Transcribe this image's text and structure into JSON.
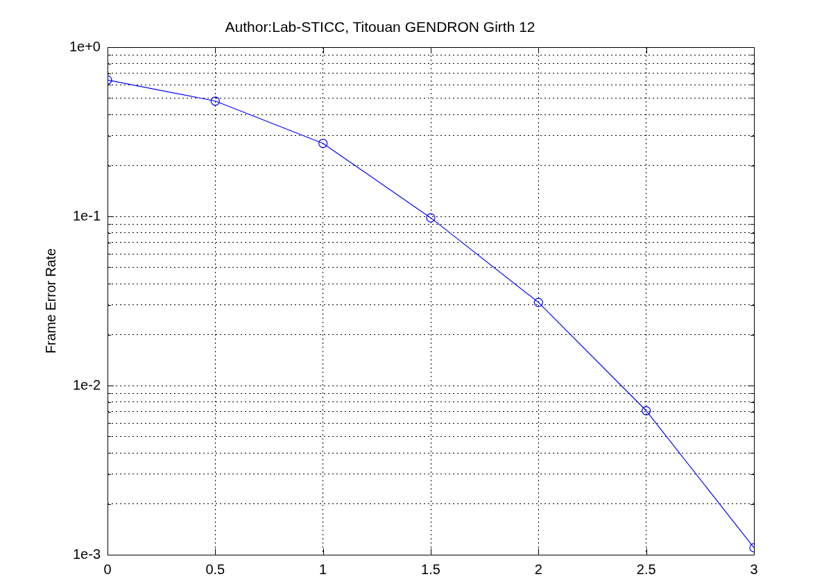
{
  "chart_data": {
    "type": "line",
    "title": "Author:Lab-STICC, Titouan GENDRON Girth 12",
    "ylabel": "Frame Error Rate",
    "x": [
      0,
      0.5,
      1,
      1.5,
      2,
      2.5,
      3
    ],
    "series": [
      {
        "color": "#0000ff",
        "values": [
          0.64,
          0.48,
          0.27,
          0.098,
          0.031,
          0.0071,
          0.0011
        ]
      }
    ],
    "xlim": [
      0,
      3
    ],
    "xticks": [
      0,
      0.5,
      1,
      1.5,
      2,
      2.5,
      3
    ],
    "ylim": [
      0.001,
      1
    ],
    "yticks": [
      {
        "value": 0.001,
        "label": "1e-3"
      },
      {
        "value": 0.002,
        "label": null
      },
      {
        "value": 0.003,
        "label": null
      },
      {
        "value": 0.004,
        "label": null
      },
      {
        "value": 0.005,
        "label": null
      },
      {
        "value": 0.006,
        "label": null
      },
      {
        "value": 0.007,
        "label": null
      },
      {
        "value": 0.008,
        "label": null
      },
      {
        "value": 0.009,
        "label": null
      },
      {
        "value": 0.01,
        "label": "1e-2"
      },
      {
        "value": 0.02,
        "label": null
      },
      {
        "value": 0.03,
        "label": null
      },
      {
        "value": 0.04,
        "label": null
      },
      {
        "value": 0.05,
        "label": null
      },
      {
        "value": 0.06,
        "label": null
      },
      {
        "value": 0.07,
        "label": null
      },
      {
        "value": 0.08,
        "label": null
      },
      {
        "value": 0.09,
        "label": null
      },
      {
        "value": 0.1,
        "label": "1e-1"
      },
      {
        "value": 0.2,
        "label": null
      },
      {
        "value": 0.3,
        "label": null
      },
      {
        "value": 0.4,
        "label": null
      },
      {
        "value": 0.5,
        "label": null
      },
      {
        "value": 0.6,
        "label": null
      },
      {
        "value": 0.7,
        "label": null
      },
      {
        "value": 0.8,
        "label": null
      },
      {
        "value": 0.9,
        "label": null
      },
      {
        "value": 1,
        "label": "1e+0"
      }
    ],
    "log": "y",
    "grid": true,
    "marker": "circle",
    "line_style": "solid"
  }
}
